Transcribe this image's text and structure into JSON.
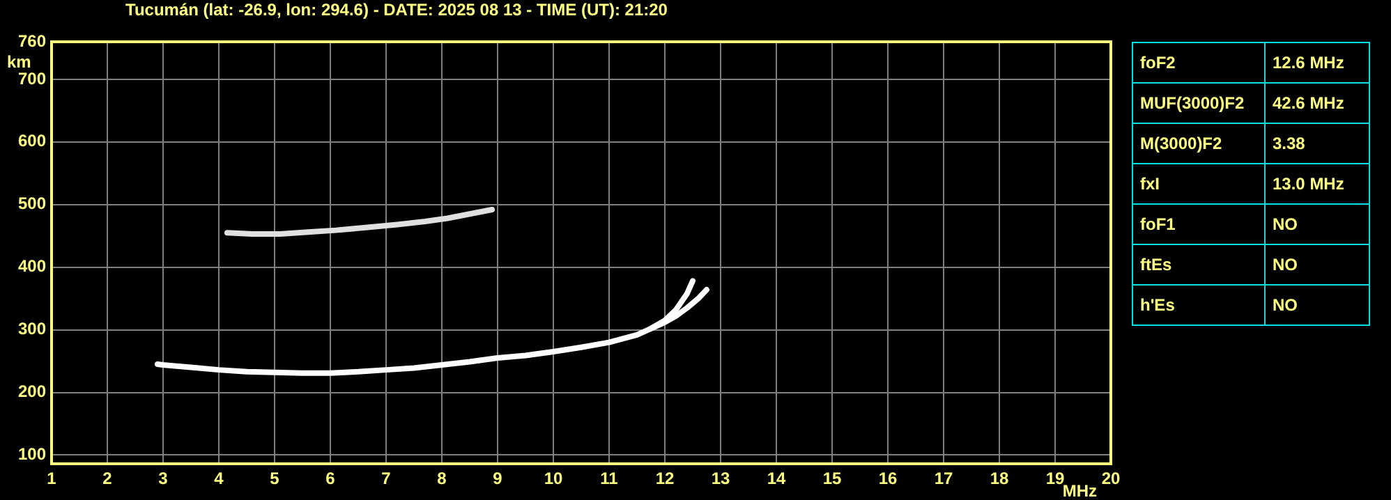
{
  "chart_data": {
    "type": "line",
    "title": "Tucumán (lat: -26.9, lon: 294.6) - DATE: 2025 08 13 - TIME (UT): 21:20",
    "xlabel": "MHz",
    "ylabel": "km",
    "xlim": [
      1,
      20
    ],
    "xticks": [
      1,
      2,
      3,
      4,
      5,
      6,
      7,
      8,
      9,
      10,
      11,
      12,
      13,
      14,
      15,
      16,
      17,
      18,
      19,
      20
    ],
    "ylim": [
      86,
      760
    ],
    "yticks": [
      100,
      200,
      300,
      400,
      500,
      600,
      700,
      760
    ],
    "grid": true,
    "legend": false,
    "marker": "none",
    "line_style": "solid",
    "series": [
      {
        "color": "#ffffff",
        "x": [
          2.9,
          3,
          3.5,
          4,
          4.5,
          5,
          5.5,
          6,
          6.5,
          7,
          7.5,
          8,
          8.5,
          9,
          9.5,
          10,
          10.5,
          11,
          11.5,
          11.75,
          12,
          12.2,
          12.4,
          12.5
        ],
        "values": [
          245,
          244,
          240,
          236,
          233,
          232,
          231,
          231,
          233,
          236,
          239,
          244,
          249,
          255,
          259,
          265,
          272,
          280,
          292,
          302,
          315,
          332,
          358,
          378
        ]
      },
      {
        "color": "#ffffff",
        "x": [
          11.75,
          12,
          12.2,
          12.4,
          12.6,
          12.75
        ],
        "values": [
          302,
          312,
          322,
          335,
          350,
          364
        ]
      },
      {
        "color": "#e0e0e0",
        "x": [
          4.15,
          4.6,
          5.1,
          5.6,
          6.1,
          6.6,
          7.2,
          7.7,
          8.1,
          8.5,
          8.9
        ],
        "values": [
          455,
          453,
          453,
          456,
          459,
          463,
          468,
          473,
          478,
          485,
          492
        ]
      }
    ],
    "annotations": [
      "foF2",
      "12.6 MHz",
      "MUF(3000)F2",
      "42.6 MHz",
      "M(3000)F2",
      "3.38",
      "fxI",
      "13.0 MHz",
      "foF1",
      "NO",
      "ftEs",
      "NO",
      "h'Es",
      "NO"
    ]
  }
}
